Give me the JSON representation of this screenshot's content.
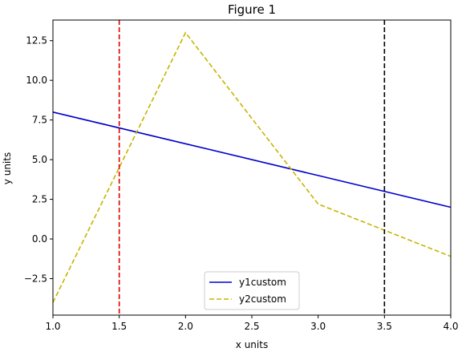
{
  "chart_data": {
    "type": "line",
    "title": "Figure 1",
    "xlabel": "x units",
    "ylabel": "y units",
    "xlim": [
      1.0,
      4.0
    ],
    "ylim": [
      -4.8,
      13.8
    ],
    "xticks": [
      1.0,
      1.5,
      2.0,
      2.5,
      3.0,
      3.5,
      4.0
    ],
    "xtick_labels": [
      "1.0",
      "1.5",
      "2.0",
      "2.5",
      "3.0",
      "3.5",
      "4.0"
    ],
    "yticks": [
      -2.5,
      0.0,
      2.5,
      5.0,
      7.5,
      10.0,
      12.5
    ],
    "ytick_labels": [
      "−2.5",
      "0.0",
      "2.5",
      "5.0",
      "7.5",
      "10.0",
      "12.5"
    ],
    "grid": false,
    "legend_position": "lower-center",
    "series": [
      {
        "name": "y1custom",
        "x": [
          1,
          2,
          3,
          4
        ],
        "y": [
          8,
          6,
          4,
          2
        ],
        "color": "#0000cc",
        "style": "solid"
      },
      {
        "name": "y2custom",
        "x": [
          1,
          2,
          3,
          4
        ],
        "y": [
          -4,
          13,
          2.2,
          -1.1
        ],
        "color": "#c8b400",
        "style": "dashed"
      }
    ],
    "vlines": [
      {
        "x": 1.5,
        "color": "#dd0000",
        "style": "dashed"
      },
      {
        "x": 3.5,
        "color": "#000000",
        "style": "dashed"
      }
    ]
  }
}
